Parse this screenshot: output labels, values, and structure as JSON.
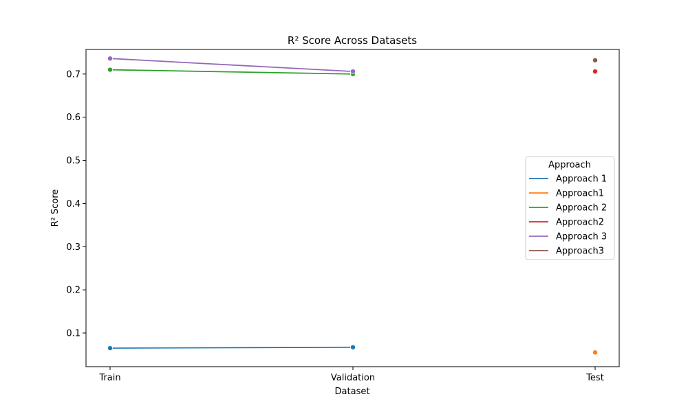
{
  "chart_data": {
    "type": "line",
    "title": "R² Score Across Datasets",
    "xlabel": "Dataset",
    "ylabel": "R² Score",
    "categories": [
      "Train",
      "Validation",
      "Test"
    ],
    "ylim": [
      0.022,
      0.757
    ],
    "yticks": [
      0.1,
      0.2,
      0.3,
      0.4,
      0.5,
      0.6,
      0.7
    ],
    "ytick_labels": [
      "0.1",
      "0.2",
      "0.3",
      "0.4",
      "0.5",
      "0.6",
      "0.7"
    ],
    "grid": false,
    "legend": {
      "title": "Approach",
      "placement": "center-right"
    },
    "series": [
      {
        "name": "Approach 1",
        "color": "#1f77b4",
        "values": [
          0.065,
          0.067,
          null
        ]
      },
      {
        "name": "Approach1",
        "color": "#ff7f0e",
        "values": [
          null,
          null,
          0.055
        ]
      },
      {
        "name": "Approach 2",
        "color": "#2ca02c",
        "values": [
          0.71,
          0.7,
          null
        ]
      },
      {
        "name": "Approach2",
        "color": "#d62728",
        "values": [
          null,
          null,
          0.706
        ]
      },
      {
        "name": "Approach 3",
        "color": "#9467bd",
        "values": [
          0.736,
          0.706,
          null
        ]
      },
      {
        "name": "Approach3",
        "color": "#8c564b",
        "values": [
          null,
          null,
          0.732
        ]
      }
    ]
  }
}
